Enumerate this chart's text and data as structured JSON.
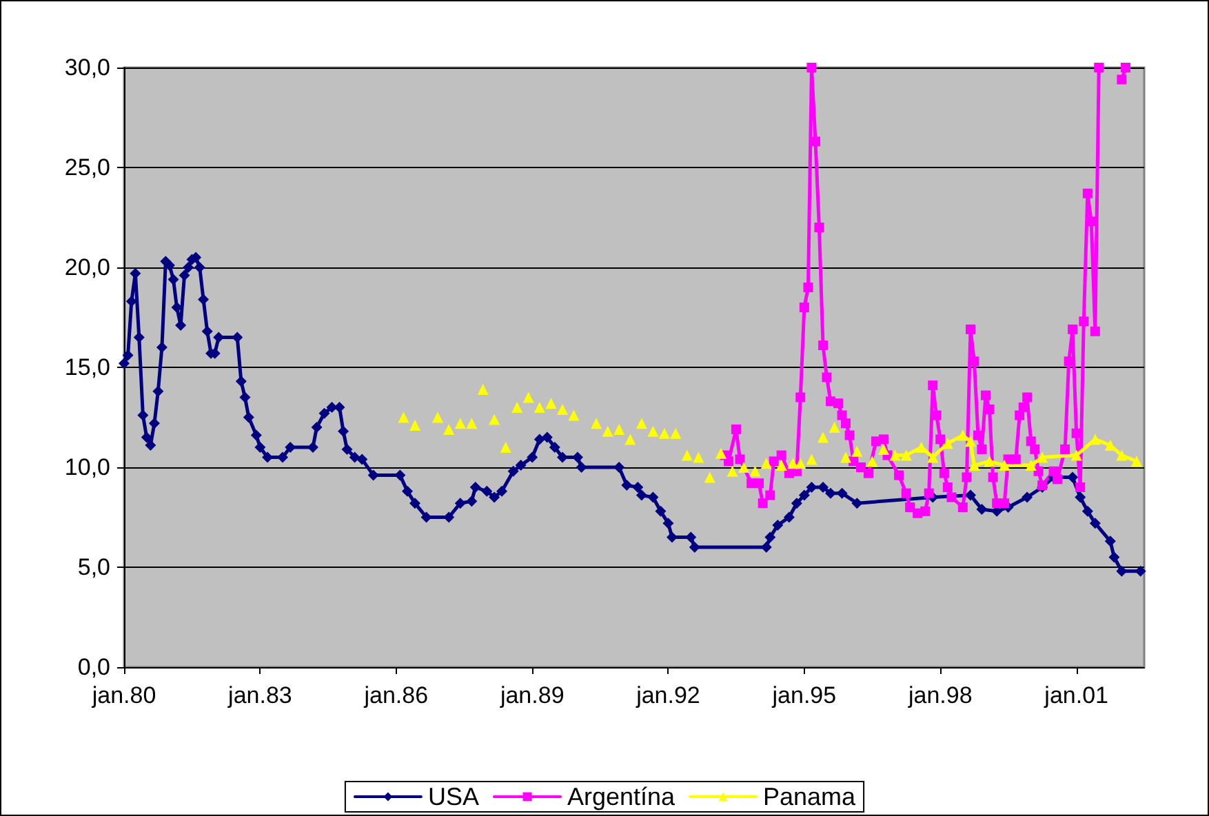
{
  "chart_data": {
    "type": "line",
    "xlim": [
      "1980-01",
      "2002-07"
    ],
    "xticks": [
      {
        "value": "1980-01",
        "label": "jan.80"
      },
      {
        "value": "1983-01",
        "label": "jan.83"
      },
      {
        "value": "1986-01",
        "label": "jan.86"
      },
      {
        "value": "1989-01",
        "label": "jan.89"
      },
      {
        "value": "1992-01",
        "label": "jan.92"
      },
      {
        "value": "1995-01",
        "label": "jan.95"
      },
      {
        "value": "1998-01",
        "label": "jan.98"
      },
      {
        "value": "2001-01",
        "label": "jan.01"
      }
    ],
    "ylim": [
      0,
      30
    ],
    "yticks": [
      {
        "value": 0,
        "label": "0,0"
      },
      {
        "value": 5,
        "label": "5,0"
      },
      {
        "value": 10,
        "label": "10,0"
      },
      {
        "value": 15,
        "label": "15,0"
      },
      {
        "value": 20,
        "label": "20,0"
      },
      {
        "value": 25,
        "label": "25,0"
      },
      {
        "value": 30,
        "label": "30,0"
      }
    ],
    "grid": "y",
    "legend": "bottom",
    "line_style": "solid",
    "series": [
      {
        "name": "USA",
        "color": "#000080",
        "marker": "diamond",
        "x": [
          "1980-01",
          "1980-02",
          "1980-03",
          "1980-04",
          "1980-05",
          "1980-06",
          "1980-07",
          "1980-08",
          "1980-09",
          "1980-10",
          "1980-11",
          "1980-12",
          "1981-01",
          "1981-02",
          "1981-03",
          "1981-04",
          "1981-05",
          "1981-06",
          "1981-07",
          "1981-08",
          "1981-09",
          "1981-10",
          "1981-11",
          "1981-12",
          "1982-01",
          "1982-02",
          "1982-07",
          "1982-08",
          "1982-09",
          "1982-10",
          "1982-12",
          "1983-01",
          "1983-03",
          "1983-07",
          "1983-09",
          "1984-03",
          "1984-04",
          "1984-06",
          "1984-08",
          "1984-10",
          "1984-11",
          "1984-12",
          "1985-02",
          "1985-04",
          "1985-07",
          "1986-02",
          "1986-04",
          "1986-06",
          "1986-09",
          "1987-03",
          "1987-06",
          "1987-09",
          "1987-10",
          "1988-01",
          "1988-03",
          "1988-05",
          "1988-08",
          "1988-10",
          "1989-01",
          "1989-03",
          "1989-05",
          "1989-07",
          "1989-09",
          "1990-01",
          "1990-02",
          "1990-12",
          "1991-02",
          "1991-05",
          "1991-06",
          "1991-09",
          "1991-11",
          "1992-01",
          "1992-02",
          "1992-07",
          "1992-08",
          "1994-03",
          "1994-04",
          "1994-06",
          "1994-09",
          "1994-11",
          "1995-01",
          "1995-03",
          "1995-06",
          "1995-08",
          "1995-11",
          "1996-03",
          "1997-11",
          "1998-09",
          "1998-12",
          "1999-04",
          "1999-07",
          "1999-12",
          "2000-04",
          "2000-07",
          "2000-12",
          "2001-02",
          "2001-04",
          "2001-06",
          "2001-10",
          "2001-11",
          "2002-01",
          "2002-06"
        ],
        "values": [
          15.2,
          15.6,
          18.3,
          19.7,
          16.5,
          12.6,
          11.5,
          11.1,
          12.2,
          13.8,
          16.0,
          20.3,
          20.1,
          19.4,
          18.0,
          17.1,
          19.6,
          20.0,
          20.4,
          20.5,
          20.0,
          18.4,
          16.8,
          15.7,
          15.7,
          16.5,
          16.5,
          14.3,
          13.5,
          12.5,
          11.6,
          11.0,
          10.5,
          10.5,
          11.0,
          11.0,
          12.0,
          12.7,
          13.0,
          13.0,
          11.8,
          10.9,
          10.5,
          10.4,
          9.6,
          9.6,
          8.8,
          8.2,
          7.5,
          7.5,
          8.2,
          8.3,
          9.0,
          8.8,
          8.5,
          8.8,
          9.8,
          10.1,
          10.5,
          11.4,
          11.5,
          11.0,
          10.5,
          10.5,
          10.0,
          10.0,
          9.1,
          9.0,
          8.6,
          8.5,
          7.8,
          7.2,
          6.5,
          6.5,
          6.0,
          6.0,
          6.5,
          7.1,
          7.5,
          8.2,
          8.6,
          9.0,
          9.0,
          8.7,
          8.7,
          8.2,
          8.5,
          8.6,
          7.9,
          7.8,
          8.0,
          8.5,
          9.0,
          9.5,
          9.5,
          8.5,
          7.8,
          7.2,
          6.3,
          5.5,
          4.8,
          4.8
        ]
      },
      {
        "name": "Argentína",
        "color": "#ff00ff",
        "marker": "square",
        "x": [
          "1993-04",
          "1993-05",
          "1993-07",
          "1993-08",
          "1993-11",
          "1994-01",
          "1994-02",
          "1994-04",
          "1994-05",
          "1994-07",
          "1994-09",
          "1994-11",
          "1994-12",
          "1995-01",
          "1995-02",
          "1995-03",
          "1995-04",
          "1995-05",
          "1995-06",
          "1995-07",
          "1995-08",
          "1995-10",
          "1995-11",
          "1995-12",
          "1996-01",
          "1996-02",
          "1996-04",
          "1996-06",
          "1996-08",
          "1996-10",
          "1996-11",
          "1997-02",
          "1997-04",
          "1997-05",
          "1997-07",
          "1997-09",
          "1997-10",
          "1997-11",
          "1997-12",
          "1998-01",
          "1998-02",
          "1998-03",
          "1998-04",
          "1998-07",
          "1998-08",
          "1998-09",
          "1998-10",
          "1998-11",
          "1998-12",
          "1999-01",
          "1999-02",
          "1999-03",
          "1999-04",
          "1999-06",
          "1999-07",
          "1999-09",
          "1999-10",
          "1999-11",
          "1999-12",
          "2000-01",
          "2000-02",
          "2000-03",
          "2000-04",
          "2000-07",
          "2000-08",
          "2000-10",
          "2000-11",
          "2000-12",
          "2001-01",
          "2001-02",
          "2001-03",
          "2001-04",
          "2001-05",
          "2001-06",
          "2001-07",
          "2001-10",
          "2002-01",
          "2002-02"
        ],
        "values": [
          10.6,
          10.3,
          11.9,
          10.4,
          9.2,
          9.2,
          8.2,
          8.6,
          10.3,
          10.6,
          9.7,
          9.8,
          13.5,
          18.0,
          19.0,
          30.0,
          26.3,
          22.0,
          16.1,
          14.5,
          13.3,
          13.2,
          12.6,
          12.2,
          11.6,
          10.3,
          10.0,
          9.7,
          11.3,
          11.4,
          10.6,
          9.6,
          8.7,
          8.0,
          7.7,
          7.8,
          8.7,
          14.1,
          12.6,
          11.4,
          9.7,
          9.0,
          8.5,
          8.0,
          9.5,
          16.9,
          15.3,
          11.6,
          10.9,
          13.6,
          12.9,
          9.5,
          8.2,
          8.2,
          10.4,
          10.4,
          12.6,
          13.0,
          13.5,
          11.3,
          10.9,
          9.8,
          9.1,
          9.8,
          9.4,
          10.9,
          15.3,
          16.9,
          11.7,
          9.0,
          17.3,
          23.7,
          22.3,
          16.8,
          30.0,
          null,
          29.4,
          30.0
        ]
      },
      {
        "name": "Panama",
        "color": "#ffff00",
        "marker": "triangle",
        "x": [
          "1986-03",
          "1986-05",
          "1986-06",
          "1986-09",
          "1986-12",
          "1987-02",
          "1987-03",
          "1987-05",
          "1987-06",
          "1987-08",
          "1987-09",
          "1987-11",
          "1987-12",
          "1988-02",
          "1988-03",
          "1988-05",
          "1988-06",
          "1988-08",
          "1988-09",
          "1988-11",
          "1988-12",
          "1989-02",
          "1989-03",
          "1989-05",
          "1989-06",
          "1989-08",
          "1989-09",
          "1989-11",
          "1989-12",
          "1990-03",
          "1990-06",
          "1990-08",
          "1990-09",
          "1990-11",
          "1990-12",
          "1991-02",
          "1991-03",
          "1991-05",
          "1991-06",
          "1991-08",
          "1991-09",
          "1991-11",
          "1991-12",
          "1992-02",
          "1992-03",
          "1992-05",
          "1992-06",
          "1992-08",
          "1992-09",
          "1992-11",
          "1992-12",
          "1993-02",
          "1993-03",
          "1993-05",
          "1993-06",
          "1993-08",
          "1993-09",
          "1993-11",
          "1993-12",
          "1994-02",
          "1994-03",
          "1994-05",
          "1994-07",
          "1994-08",
          "1994-10",
          "1994-11",
          "1994-12",
          "1995-02",
          "1995-03",
          "1995-05",
          "1995-06",
          "1995-08",
          "1995-09",
          "1995-11",
          "1995-12",
          "1996-02",
          "1996-03",
          "1996-05",
          "1996-07",
          "1996-08",
          "1996-10",
          "1996-11",
          "1997-01",
          "1997-04",
          "1997-08",
          "1997-11",
          "1998-03",
          "1998-07",
          "1998-09",
          "1998-10",
          "1999-02",
          "1999-06",
          "2000-01",
          "2000-04",
          "2001-01",
          "2001-06",
          "2001-10",
          "2002-01",
          "2002-05"
        ],
        "values": [
          12.5,
          null,
          12.1,
          null,
          12.5,
          null,
          11.9,
          null,
          12.2,
          null,
          12.2,
          null,
          13.9,
          null,
          12.4,
          null,
          11.0,
          null,
          13.0,
          null,
          13.5,
          null,
          13.0,
          null,
          13.2,
          null,
          12.9,
          null,
          12.6,
          null,
          12.2,
          null,
          11.8,
          null,
          11.9,
          null,
          11.4,
          null,
          12.2,
          null,
          11.8,
          null,
          11.7,
          null,
          11.7,
          null,
          10.6,
          null,
          10.5,
          null,
          9.5,
          null,
          10.7,
          null,
          9.8,
          null,
          10.0,
          null,
          9.8,
          null,
          10.2,
          null,
          10.1,
          null,
          10.2,
          null,
          10.2,
          null,
          10.4,
          null,
          11.5,
          null,
          12.0,
          null,
          10.5,
          null,
          10.8,
          null,
          10.3,
          null,
          10.9,
          null,
          10.6,
          10.6,
          11.0,
          10.5,
          11.2,
          11.6,
          11.3,
          10.1,
          10.3,
          10.1,
          10.1,
          10.5,
          10.6,
          11.4,
          11.1,
          10.6,
          10.3
        ]
      }
    ]
  }
}
